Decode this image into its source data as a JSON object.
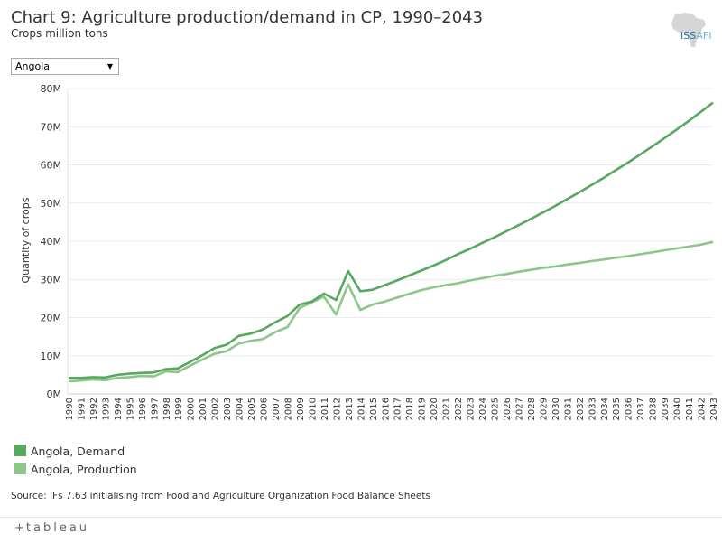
{
  "header": {
    "title": "Chart 9: Agriculture production/demand in CP, 1990–2043",
    "subtitle": "Crops million tons"
  },
  "logo": {
    "text_main": "ISS",
    "text_secondary": "AFI",
    "icon": "africa-map-icon"
  },
  "filter": {
    "selected": "Angola",
    "icon": "triangle-down-icon"
  },
  "legend": [
    {
      "label": "Angola, Demand",
      "color": "#59a85f"
    },
    {
      "label": "Angola, Production",
      "color": "#8cc68a"
    }
  ],
  "source": "Source: IFs 7.63 initialising from Food and Agriculture Organization Food Balance Sheets",
  "footer": {
    "plus": "+",
    "brand": "tableau",
    "icon": "tableau-plus-icon"
  },
  "chart_data": {
    "type": "line",
    "xlabel": "",
    "ylabel": "Quantity of crops",
    "ylim": [
      0,
      80
    ],
    "yticks": [
      "0M",
      "10M",
      "20M",
      "30M",
      "40M",
      "50M",
      "60M",
      "70M",
      "80M"
    ],
    "grid": "horizontal",
    "x": [
      1990,
      1991,
      1992,
      1993,
      1994,
      1995,
      1996,
      1997,
      1998,
      1999,
      2000,
      2001,
      2002,
      2003,
      2004,
      2005,
      2006,
      2007,
      2008,
      2009,
      2010,
      2011,
      2012,
      2013,
      2014,
      2015,
      2016,
      2017,
      2018,
      2019,
      2020,
      2021,
      2022,
      2023,
      2024,
      2025,
      2026,
      2027,
      2028,
      2029,
      2030,
      2031,
      2032,
      2033,
      2034,
      2035,
      2036,
      2037,
      2038,
      2039,
      2040,
      2041,
      2042,
      2043
    ],
    "series": [
      {
        "name": "Angola, Demand",
        "color": "#59a85f",
        "values": [
          4.2,
          4.2,
          4.4,
          4.3,
          5.0,
          5.3,
          5.5,
          5.6,
          6.5,
          6.7,
          8.4,
          10.1,
          12.0,
          12.9,
          15.2,
          15.8,
          16.9,
          18.8,
          20.4,
          23.4,
          24.2,
          26.3,
          24.6,
          32.2,
          26.9,
          27.3,
          28.5,
          29.7,
          31.0,
          32.3,
          33.6,
          35.0,
          36.6,
          38.0,
          39.5,
          41.0,
          42.6,
          44.2,
          45.8,
          47.5,
          49.2,
          51.0,
          52.8,
          54.7,
          56.6,
          58.6,
          60.6,
          62.7,
          64.8,
          67.0,
          69.2,
          71.5,
          73.9,
          76.3
        ]
      },
      {
        "name": "Angola, Production",
        "color": "#8cc68a",
        "values": [
          3.3,
          3.5,
          3.8,
          3.6,
          4.2,
          4.4,
          4.7,
          4.6,
          5.9,
          5.7,
          7.4,
          9.0,
          10.5,
          11.2,
          13.2,
          13.9,
          14.4,
          16.2,
          17.5,
          22.5,
          24.0,
          25.5,
          20.8,
          28.7,
          22.0,
          23.4,
          24.2,
          25.2,
          26.2,
          27.2,
          27.9,
          28.5,
          29.0,
          29.7,
          30.3,
          30.9,
          31.4,
          32.0,
          32.5,
          33.0,
          33.4,
          33.9,
          34.3,
          34.8,
          35.2,
          35.7,
          36.1,
          36.6,
          37.1,
          37.6,
          38.1,
          38.6,
          39.1,
          39.8
        ]
      }
    ]
  }
}
